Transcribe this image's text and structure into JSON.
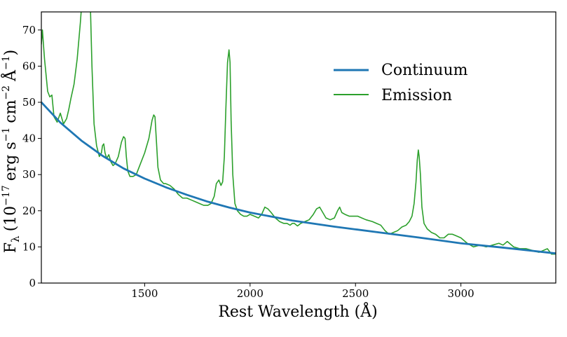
{
  "chart_data": {
    "type": "line",
    "title": "",
    "xlabel": "Rest Wavelength (Å)",
    "ylabel_parts": {
      "main": "F",
      "sub": "λ",
      "open": "(10",
      "exp1": "−17",
      "mid1": "erg s",
      "exp2": "−1",
      "mid2": "cm",
      "exp3": "−2",
      "mid3": "Å",
      "exp4": "−1",
      "close": ")"
    },
    "xlim": [
      1010,
      3450
    ],
    "ylim": [
      0,
      75
    ],
    "xticks": [
      1500,
      2000,
      2500,
      3000
    ],
    "yticks": [
      0,
      10,
      20,
      30,
      40,
      50,
      60,
      70
    ],
    "legend_position": "upper-right",
    "colors": {
      "continuum": "#1f77b4",
      "emission": "#2ca02c"
    },
    "continuum": {
      "name": "Continuum",
      "x": [
        1010,
        1100,
        1200,
        1300,
        1400,
        1500,
        1600,
        1700,
        1800,
        1900,
        2000,
        2200,
        2400,
        2600,
        2800,
        3000,
        3200,
        3450
      ],
      "y": [
        50.0,
        44.4,
        39.4,
        35.2,
        31.7,
        28.9,
        26.5,
        24.4,
        22.5,
        20.9,
        19.5,
        17.3,
        15.6,
        14.1,
        12.6,
        11.0,
        9.8,
        8.2
      ]
    },
    "emission": {
      "name": "Emission",
      "x": [
        1010,
        1015,
        1025,
        1040,
        1050,
        1060,
        1070,
        1085,
        1100,
        1115,
        1130,
        1140,
        1150,
        1165,
        1180,
        1195,
        1205,
        1212,
        1218,
        1222,
        1230,
        1235,
        1242,
        1250,
        1260,
        1272,
        1285,
        1295,
        1300,
        1306,
        1312,
        1320,
        1330,
        1340,
        1350,
        1360,
        1375,
        1390,
        1400,
        1407,
        1413,
        1420,
        1430,
        1445,
        1460,
        1480,
        1500,
        1520,
        1535,
        1543,
        1549,
        1555,
        1563,
        1575,
        1590,
        1600,
        1620,
        1640,
        1660,
        1680,
        1700,
        1720,
        1740,
        1760,
        1780,
        1800,
        1815,
        1830,
        1840,
        1852,
        1862,
        1870,
        1878,
        1885,
        1893,
        1900,
        1905,
        1910,
        1918,
        1928,
        1940,
        1955,
        1970,
        1985,
        2000,
        2020,
        2040,
        2055,
        2070,
        2085,
        2100,
        2120,
        2140,
        2160,
        2175,
        2190,
        2200,
        2210,
        2225,
        2240,
        2260,
        2280,
        2300,
        2315,
        2330,
        2345,
        2360,
        2380,
        2400,
        2415,
        2425,
        2435,
        2450,
        2470,
        2490,
        2510,
        2530,
        2550,
        2580,
        2600,
        2620,
        2640,
        2660,
        2680,
        2700,
        2720,
        2740,
        2755,
        2768,
        2778,
        2787,
        2793,
        2798,
        2802,
        2808,
        2815,
        2825,
        2840,
        2860,
        2880,
        2900,
        2920,
        2940,
        2960,
        2980,
        3000,
        3030,
        3060,
        3090,
        3120,
        3150,
        3180,
        3200,
        3220,
        3250,
        3280,
        3310,
        3340,
        3370,
        3390,
        3410,
        3430,
        3450
      ],
      "y": [
        66.0,
        70.0,
        62.0,
        53.0,
        51.5,
        52.0,
        46.0,
        44.5,
        47.0,
        44.0,
        45.5,
        48.0,
        51.0,
        55.0,
        62.0,
        72.0,
        80.0,
        84.0,
        83.5,
        80.0,
        77.0,
        80.0,
        78.0,
        60.0,
        44.0,
        38.0,
        35.0,
        36.0,
        38.0,
        38.5,
        36.0,
        34.5,
        35.5,
        33.5,
        32.5,
        33.0,
        35.0,
        39.0,
        40.5,
        40.0,
        35.0,
        31.0,
        29.5,
        29.5,
        30.0,
        33.0,
        36.0,
        40.0,
        45.0,
        46.5,
        46.0,
        40.0,
        32.0,
        28.5,
        27.5,
        27.5,
        27.0,
        26.0,
        24.5,
        23.5,
        23.5,
        23.0,
        22.5,
        22.0,
        21.5,
        21.5,
        22.0,
        24.0,
        27.5,
        28.5,
        27.0,
        28.0,
        35.0,
        48.0,
        61.0,
        64.5,
        61.0,
        45.0,
        30.0,
        22.0,
        20.0,
        19.0,
        18.5,
        18.5,
        19.0,
        18.5,
        18.0,
        19.0,
        21.0,
        20.5,
        19.5,
        18.0,
        17.0,
        16.5,
        16.5,
        16.0,
        16.5,
        16.5,
        15.8,
        16.5,
        17.0,
        17.5,
        19.0,
        20.5,
        21.0,
        19.5,
        18.0,
        17.5,
        18.0,
        20.0,
        21.0,
        19.5,
        19.0,
        18.5,
        18.5,
        18.5,
        18.0,
        17.5,
        17.0,
        16.5,
        16.0,
        14.5,
        13.5,
        14.0,
        14.5,
        15.5,
        16.0,
        17.0,
        18.5,
        22.0,
        28.0,
        34.0,
        36.8,
        35.0,
        30.0,
        21.0,
        16.5,
        15.0,
        14.0,
        13.5,
        12.5,
        12.5,
        13.5,
        13.5,
        13.0,
        12.5,
        11.0,
        10.0,
        10.5,
        10.0,
        10.5,
        11.0,
        10.5,
        11.5,
        10.0,
        9.5,
        9.5,
        9.0,
        8.5,
        9.0,
        9.5,
        8.0,
        8.0
      ]
    }
  }
}
